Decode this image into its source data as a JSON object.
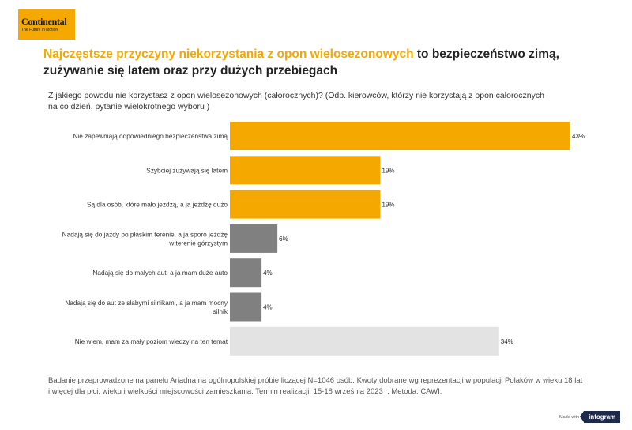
{
  "logo": {
    "brand": "Continental",
    "tagline": "The Future in Motion"
  },
  "title": {
    "highlight": "Najczęstsze przyczyny niekorzystania z opon wielosezonowych",
    "rest": " to bezpieczeństwo zimą, zużywanie się latem oraz przy dużych przebiegach"
  },
  "question": "Z jakiego powodu nie korzystasz z opon wielosezonowych (całorocznych)? (Odp. kierowców, którzy nie korzystają z opon całorocznych na co dzień, pytanie wielokrotnego wyboru )",
  "chart_data": {
    "type": "bar",
    "orientation": "horizontal",
    "categories": [
      "Nie zapewniają odpowiedniego bezpieczeństwa zimą",
      "Szybciej zużywają się latem",
      "Są dla osób, które mało jeżdżą, a ja jeżdżę dużo",
      "Nadają się do jazdy po płaskim terenie, a ja sporo jeżdżę w terenie górzystym",
      "Nadają się do małych aut, a ja mam duże auto",
      "Nadają się do aut ze słabymi silnikami, a ja mam mocny silnik",
      "Nie wiem, mam za mały poziom wiedzy na ten temat"
    ],
    "category_lines": [
      [
        "Nie zapewniają odpowiedniego bezpieczeństwa zimą"
      ],
      [
        "Szybciej zużywają się latem"
      ],
      [
        "Są dla osób, które mało jeżdżą, a ja jeżdżę dużo"
      ],
      [
        "Nadają się do jazdy po płaskim terenie, a ja sporo jeżdżę",
        "w terenie górzystym"
      ],
      [
        "Nadają się do małych aut, a ja mam duże auto"
      ],
      [
        "Nadają się do aut ze słabymi silnikami, a ja mam mocny",
        "silnik"
      ],
      [
        "Nie wiem, mam za mały poziom wiedzy na ten temat"
      ]
    ],
    "values": [
      43,
      19,
      19,
      6,
      4,
      4,
      34
    ],
    "value_labels": [
      "43%",
      "19%",
      "19%",
      "6%",
      "4%",
      "4%",
      "34%"
    ],
    "colors": [
      "#f5a800",
      "#f5a800",
      "#f5a800",
      "#808080",
      "#808080",
      "#808080",
      "#e3e3e3"
    ],
    "xlim": [
      0,
      43
    ],
    "grid": false,
    "legend": "none"
  },
  "footnote": "Badanie przeprowadzone na panelu Ariadna na ogólnopolskiej próbie liczącej N=1046 osób. Kwoty dobrane wg reprezentacji w populacji Polaków w wieku 18 lat i więcej dla płci, wieku i wielkości miejscowości zamieszkania. Termin realizacji: 15-18 września 2023 r. Metoda: CAWI.",
  "credit": {
    "made_with": "Made with",
    "brand": "infogram"
  }
}
